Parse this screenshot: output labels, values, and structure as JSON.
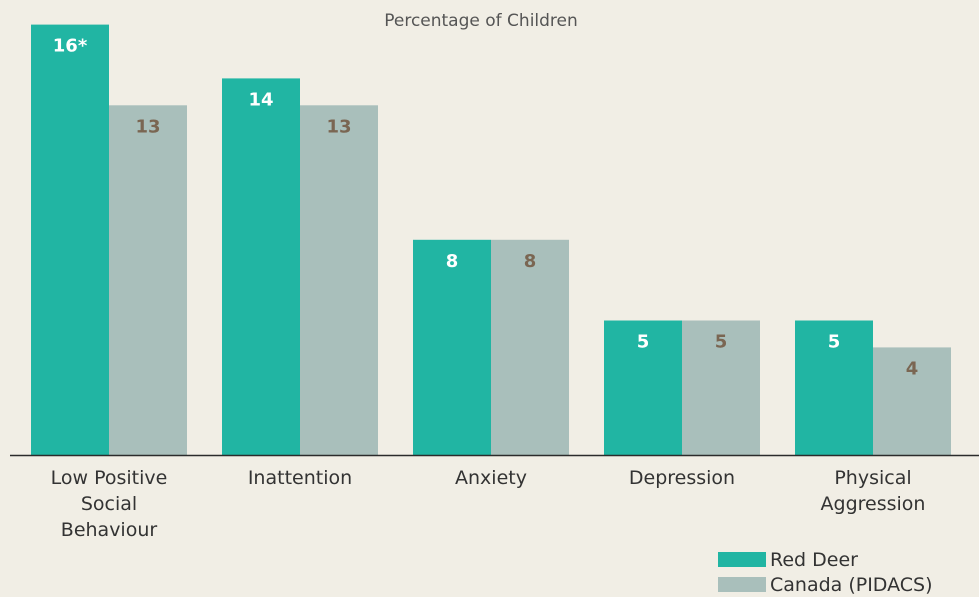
{
  "chart_data": {
    "type": "bar",
    "title": "Percentage of Children",
    "categories": [
      "Low Positive Social Behaviour",
      "Inattention",
      "Anxiety",
      "Depression",
      "Physical Aggression"
    ],
    "category_lines": [
      [
        "Low Positive",
        "Social",
        "Behaviour"
      ],
      [
        "Inattention"
      ],
      [
        "Anxiety"
      ],
      [
        "Depression"
      ],
      [
        "Physical",
        "Aggression"
      ]
    ],
    "series": [
      {
        "name": "Red Deer",
        "color": "#21b5a3",
        "label_color": "#ffffff",
        "values": [
          16,
          14,
          8,
          5,
          5
        ],
        "labels": [
          "16*",
          "14",
          "8",
          "5",
          "5"
        ]
      },
      {
        "name": "Canada (PIDACS)",
        "color": "#a9bfbb",
        "label_color": "#7a6652",
        "values": [
          13,
          13,
          8,
          5,
          4
        ],
        "labels": [
          "13",
          "13",
          "8",
          "5",
          "4"
        ]
      }
    ],
    "ylim": [
      0,
      16
    ],
    "grid": false,
    "legend_position": "bottom-right"
  }
}
